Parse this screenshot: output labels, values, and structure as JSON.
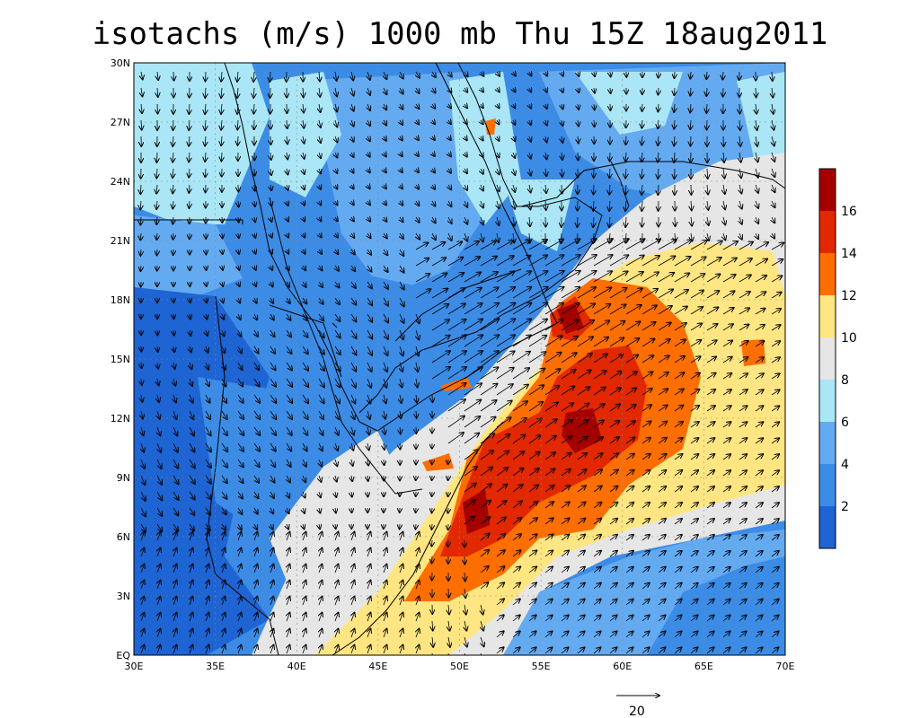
{
  "title": "isotachs (m/s) 1000 mb Thu 15Z 18aug2011",
  "map": {
    "lon_range": [
      30,
      70
    ],
    "lat_range": [
      0,
      30
    ],
    "x_ticks": [
      "30E",
      "35E",
      "40E",
      "45E",
      "50E",
      "55E",
      "60E",
      "65E",
      "70E"
    ],
    "y_ticks": [
      "EQ",
      "3N",
      "6N",
      "9N",
      "12N",
      "15N",
      "18N",
      "21N",
      "24N",
      "27N",
      "30N"
    ],
    "grid": "dashed at ticks",
    "features": [
      "wind speed shading",
      "wind vectors",
      "coastlines",
      "country borders"
    ]
  },
  "colorbar": {
    "placement": "right",
    "labels": [
      "2",
      "4",
      "6",
      "8",
      "10",
      "12",
      "14",
      "16"
    ],
    "colors": [
      "#1e64d2",
      "#3c8ce6",
      "#64aaf0",
      "#aae6f5",
      "#e6e6e6",
      "#ffe682",
      "#ff6e00",
      "#e12800",
      "#a50000"
    ]
  },
  "vector_reference": {
    "label": "20"
  }
}
